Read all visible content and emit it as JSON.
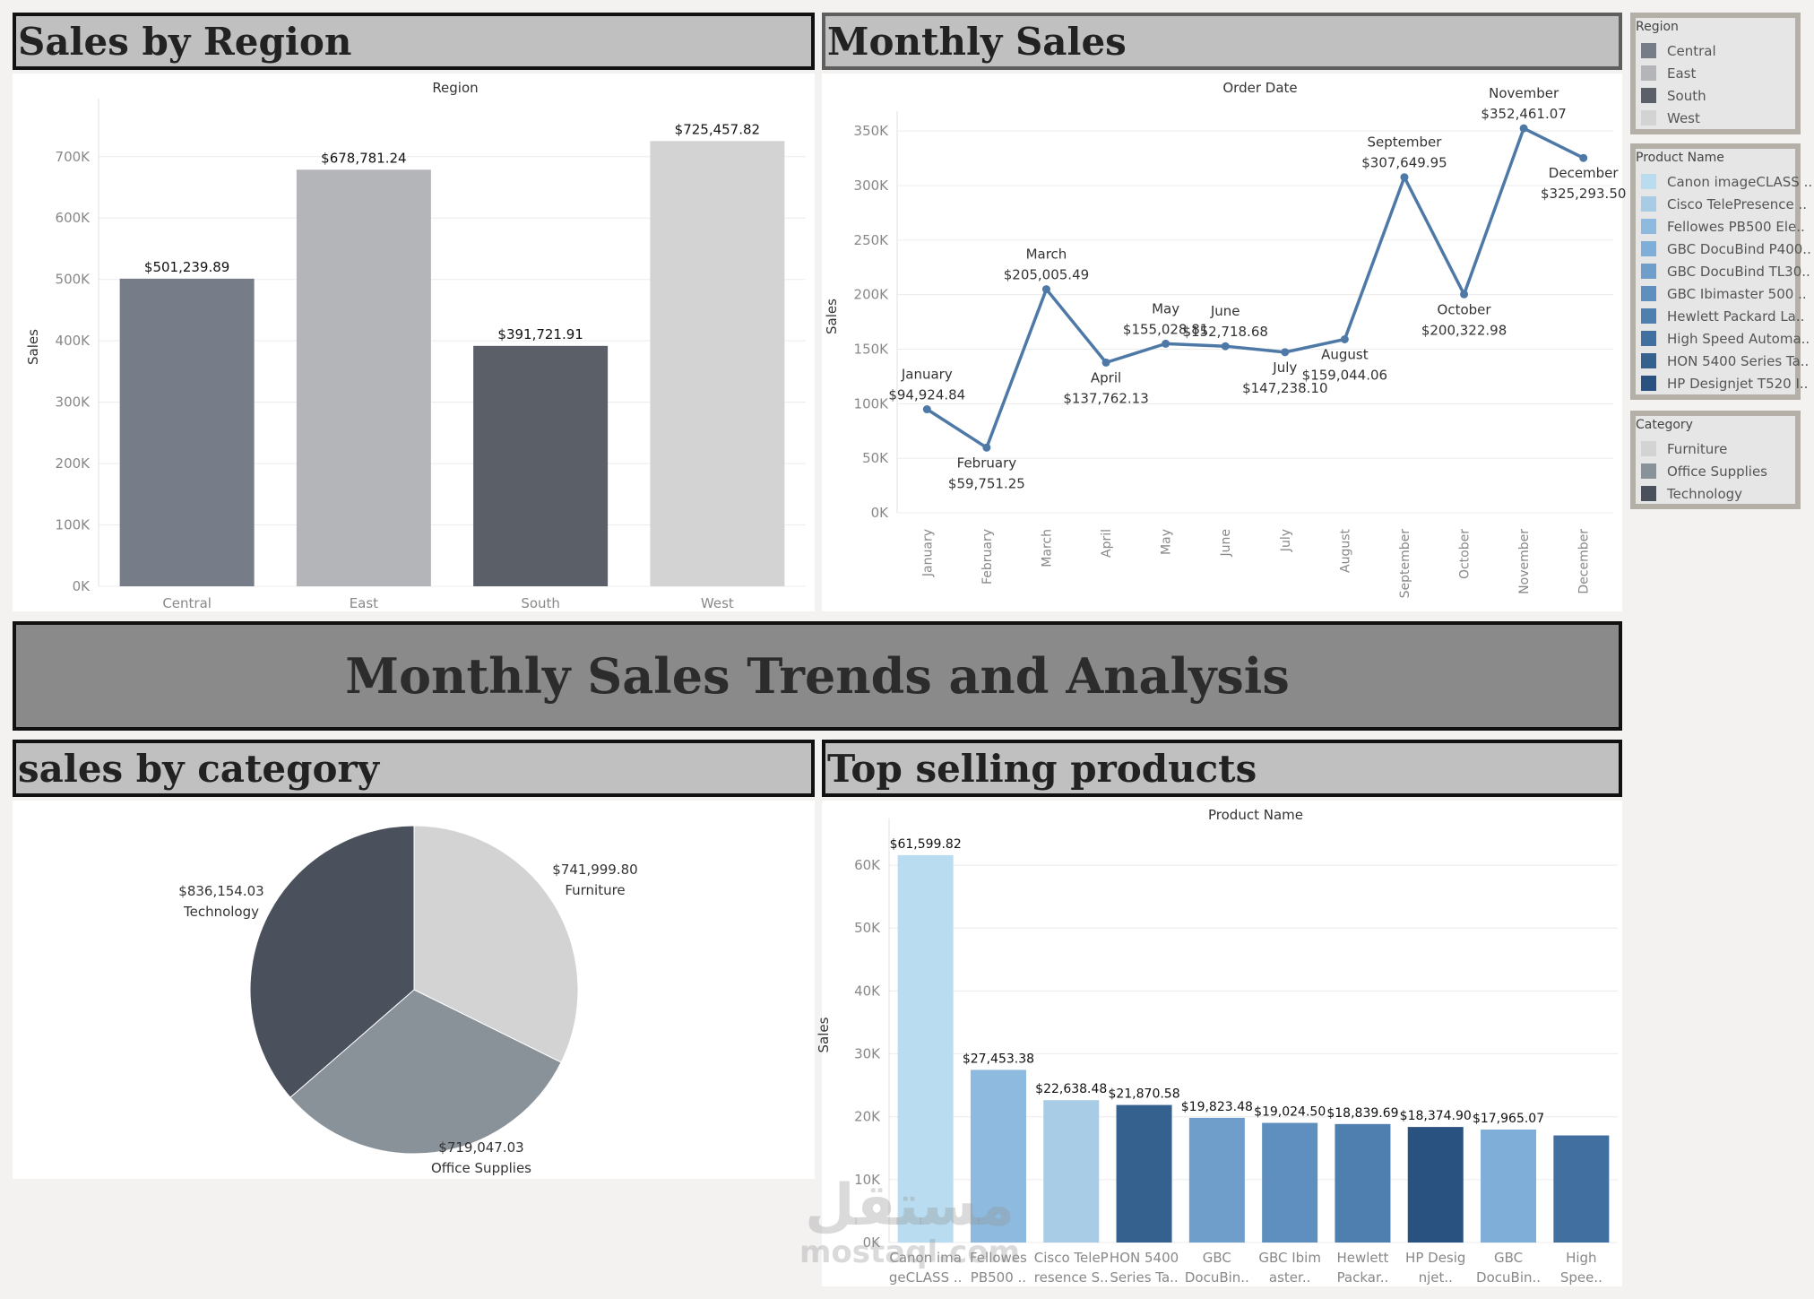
{
  "dashboard": {
    "title": "Monthly Sales Trends and Analysis",
    "watermark_arabic": "مستقل",
    "watermark_latin": "mostaql.com"
  },
  "sections": {
    "region_title": "Sales by Region",
    "monthly_title": "Monthly Sales",
    "category_title": "sales by category",
    "products_title": "Top selling products"
  },
  "legends": {
    "region": {
      "title": "Region",
      "items": [
        {
          "label": "Central",
          "color": "#767d89"
        },
        {
          "label": "East",
          "color": "#b3b5b8"
        },
        {
          "label": "South",
          "color": "#5a5f68"
        },
        {
          "label": "West",
          "color": "#d3d3d3"
        }
      ]
    },
    "product": {
      "title": "Product Name",
      "items": [
        {
          "label": "Canon imageCLASS ..",
          "color": "#b9dcf0"
        },
        {
          "label": "Cisco TelePresence ..",
          "color": "#a8cce6"
        },
        {
          "label": "Fellowes PB500 Ele..",
          "color": "#8dbade"
        },
        {
          "label": "GBC DocuBind P400..",
          "color": "#7fafd8"
        },
        {
          "label": "GBC DocuBind TL30..",
          "color": "#6f9ecb"
        },
        {
          "label": "GBC Ibimaster 500 ..",
          "color": "#5f8fbf"
        },
        {
          "label": "Hewlett Packard La..",
          "color": "#4f7fae"
        },
        {
          "label": "High Speed Automa..",
          "color": "#416f9f"
        },
        {
          "label": "HON 5400 Series Ta..",
          "color": "#35618f"
        },
        {
          "label": "HP Designjet T520 I..",
          "color": "#2a5280"
        }
      ]
    },
    "category": {
      "title": "Category",
      "items": [
        {
          "label": "Furniture",
          "color": "#d3d3d3"
        },
        {
          "label": "Office Supplies",
          "color": "#8a9299"
        },
        {
          "label": "Technology",
          "color": "#4a505c"
        }
      ]
    }
  },
  "chart_data": [
    {
      "id": "region",
      "type": "bar",
      "title": "Region",
      "xlabel": "",
      "ylabel": "Sales",
      "categories": [
        "Central",
        "East",
        "South",
        "West"
      ],
      "values": [
        501239.89,
        678781.24,
        391721.91,
        725457.82
      ],
      "value_labels": [
        "$501,239.89",
        "$678,781.24",
        "$391,721.91",
        "$725,457.82"
      ],
      "colors": [
        "#767d89",
        "#b3b5b8",
        "#5a5f68",
        "#d3d3d3"
      ],
      "ylim": [
        0,
        780000
      ],
      "yticks": [
        0,
        100000,
        200000,
        300000,
        400000,
        500000,
        600000,
        700000
      ],
      "ytick_labels": [
        "0K",
        "100K",
        "200K",
        "300K",
        "400K",
        "500K",
        "600K",
        "700K"
      ],
      "grid": true
    },
    {
      "id": "monthly",
      "type": "line",
      "title": "Order Date",
      "ylabel": "Sales",
      "categories": [
        "January",
        "February",
        "March",
        "April",
        "May",
        "June",
        "July",
        "August",
        "September",
        "October",
        "November",
        "December"
      ],
      "values": [
        94924.84,
        59751.25,
        205005.49,
        137762.13,
        155028.81,
        152718.68,
        147238.1,
        159044.06,
        307649.95,
        200322.98,
        352461.07,
        325293.5
      ],
      "value_labels": [
        "$94,924.84",
        "$59,751.25",
        "$205,005.49",
        "$137,762.13",
        "$155,028.81",
        "$152,718.68",
        "$147,238.10",
        "$159,044.06",
        "$307,649.95",
        "$200,322.98",
        "$352,461.07",
        "$325,293.50"
      ],
      "color": "#4e79a7",
      "ylim": [
        0,
        360000
      ],
      "yticks": [
        0,
        50000,
        100000,
        150000,
        200000,
        250000,
        300000,
        350000
      ],
      "ytick_labels": [
        "0K",
        "50K",
        "100K",
        "150K",
        "200K",
        "250K",
        "300K",
        "350K"
      ],
      "grid": true
    },
    {
      "id": "category",
      "type": "pie",
      "categories": [
        "Furniture",
        "Office Supplies",
        "Technology"
      ],
      "values": [
        741999.8,
        719047.03,
        836154.03
      ],
      "value_labels": [
        "$741,999.80",
        "$719,047.03",
        "$836,154.03"
      ],
      "colors": [
        "#d3d3d3",
        "#8a9299",
        "#4a505c"
      ]
    },
    {
      "id": "products",
      "type": "bar",
      "title": "Product Name",
      "ylabel": "Sales",
      "categories": [
        "Canon ima geCLASS ..",
        "Fellowes PB500 ..",
        "Cisco TeleP resence S..",
        "HON 5400 Series Ta..",
        "GBC DocuBin..",
        "GBC Ibim aster..",
        "Hewlett Packar..",
        "HP Desig njet..",
        "GBC DocuBin..",
        "High Spee.."
      ],
      "tick_lines": [
        [
          "Canon ima",
          "geCLASS .."
        ],
        [
          "Fellowes",
          "PB500 .."
        ],
        [
          "Cisco TeleP",
          "resence S.."
        ],
        [
          "HON 5400",
          "Series Ta.."
        ],
        [
          "GBC",
          "DocuBin.."
        ],
        [
          "GBC Ibim",
          "aster.."
        ],
        [
          "Hewlett",
          "Packar.."
        ],
        [
          "HP Desig",
          "njet.."
        ],
        [
          "GBC",
          "DocuBin.."
        ],
        [
          "High",
          "Spee.."
        ]
      ],
      "values": [
        61599.82,
        27453.38,
        22638.48,
        21870.58,
        19823.48,
        19024.5,
        18839.69,
        18374.9,
        17965.07,
        17030
      ],
      "value_labels": [
        "$61,599.82",
        "$27,453.38",
        "$22,638.48",
        "$21,870.58",
        "$19,823.48",
        "$19,024.50",
        "$18,839.69",
        "$18,374.90",
        "$17,965.07",
        ""
      ],
      "colors": [
        "#b9dcf0",
        "#8dbade",
        "#a8cce6",
        "#35618f",
        "#6f9ecb",
        "#5f8fbf",
        "#4f7fae",
        "#2a5280",
        "#7fafd8",
        "#416f9f"
      ],
      "ylim": [
        0,
        66000
      ],
      "yticks": [
        0,
        10000,
        20000,
        30000,
        40000,
        50000,
        60000
      ],
      "ytick_labels": [
        "0K",
        "10K",
        "20K",
        "30K",
        "40K",
        "50K",
        "60K"
      ],
      "grid": true
    }
  ]
}
